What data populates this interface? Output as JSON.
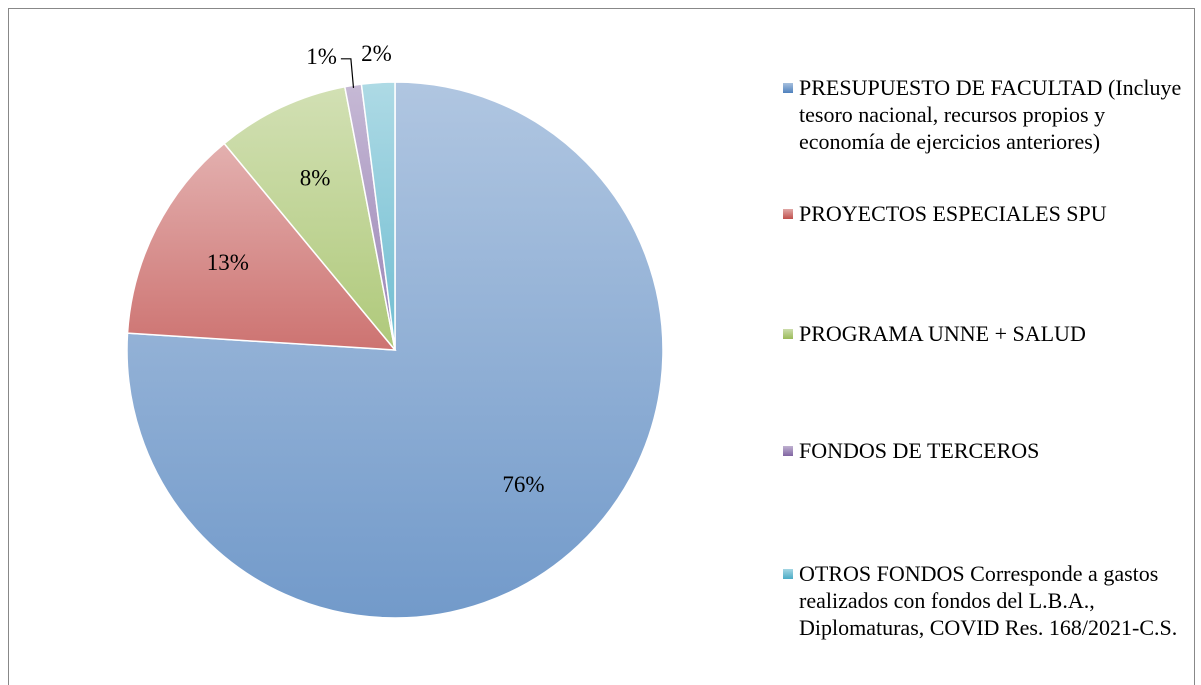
{
  "chart_data": {
    "type": "pie",
    "categories": [
      "PRESUPUESTO DE FACULTAD (Incluye tesoro nacional, recursos propios y economía de ejercicios anteriores)",
      "PROYECTOS ESPECIALES SPU",
      "PROGRAMA UNNE + SALUD",
      "FONDOS DE TERCEROS",
      "OTROS FONDOS Corresponde a gastos realizados con fondos del L.B.A., Diplomaturas, COVID Res. 168/2021-C.S."
    ],
    "values": [
      76,
      13,
      8,
      1,
      2
    ],
    "value_labels": [
      "76%",
      "13%",
      "8%",
      "1%",
      "2%"
    ],
    "colors": [
      "#4f81bd",
      "#c0504d",
      "#9bbb59",
      "#8064a2",
      "#4bacc6"
    ],
    "legend": "right"
  }
}
